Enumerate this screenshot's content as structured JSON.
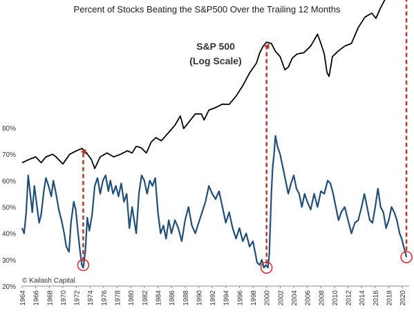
{
  "chart_data": {
    "type": "line",
    "title": "Percent of Stocks Beating the S&P500 Over the Trailing 12 Months",
    "sp500_label_line1": "S&P 500",
    "sp500_label_line2": "(Log Scale)",
    "credit": "© Kailash Capital",
    "xlabel": "",
    "ylabel": "",
    "xlim": [
      1964,
      2021
    ],
    "ylim": [
      0.2,
      0.8
    ],
    "y_ticks": [
      "20%",
      "30%",
      "40%",
      "50%",
      "60%",
      "70%",
      "80%"
    ],
    "x_ticks": [
      "1964",
      "1966",
      "1968",
      "1970",
      "1972",
      "1974",
      "1976",
      "1978",
      "1980",
      "1982",
      "1984",
      "1986",
      "1988",
      "1990",
      "1992",
      "1994",
      "1996",
      "1998",
      "2000",
      "2002",
      "2004",
      "2006",
      "2008",
      "2010",
      "2012",
      "2014",
      "2016",
      "2018",
      "2020"
    ],
    "grid": false,
    "colors": {
      "pct_series": "#1f4e79",
      "sp500_series": "#000000",
      "arrows": "#b03a2e",
      "circles": "#e02020"
    },
    "series": [
      {
        "name": "Percent of stocks beating the S&P500 (trailing 12 months)",
        "axis": "left",
        "points": [
          [
            1964.0,
            0.42
          ],
          [
            1964.3,
            0.4
          ],
          [
            1964.6,
            0.48
          ],
          [
            1964.9,
            0.62
          ],
          [
            1965.2,
            0.55
          ],
          [
            1965.5,
            0.48
          ],
          [
            1965.8,
            0.58
          ],
          [
            1966.2,
            0.5
          ],
          [
            1966.5,
            0.44
          ],
          [
            1966.8,
            0.47
          ],
          [
            1967.2,
            0.56
          ],
          [
            1967.5,
            0.61
          ],
          [
            1967.9,
            0.58
          ],
          [
            1968.3,
            0.54
          ],
          [
            1968.6,
            0.6
          ],
          [
            1969.0,
            0.55
          ],
          [
            1969.4,
            0.49
          ],
          [
            1969.8,
            0.45
          ],
          [
            1970.2,
            0.4
          ],
          [
            1970.5,
            0.35
          ],
          [
            1970.9,
            0.33
          ],
          [
            1971.2,
            0.44
          ],
          [
            1971.6,
            0.52
          ],
          [
            1971.9,
            0.49
          ],
          [
            1972.2,
            0.41
          ],
          [
            1972.5,
            0.34
          ],
          [
            1972.8,
            0.28
          ],
          [
            1973.0,
            0.27
          ],
          [
            1973.3,
            0.33
          ],
          [
            1973.6,
            0.46
          ],
          [
            1973.9,
            0.41
          ],
          [
            1974.3,
            0.47
          ],
          [
            1974.7,
            0.58
          ],
          [
            1975.1,
            0.61
          ],
          [
            1975.5,
            0.55
          ],
          [
            1975.9,
            0.6
          ],
          [
            1976.3,
            0.62
          ],
          [
            1976.7,
            0.56
          ],
          [
            1977.0,
            0.6
          ],
          [
            1977.4,
            0.55
          ],
          [
            1977.8,
            0.58
          ],
          [
            1978.2,
            0.54
          ],
          [
            1978.6,
            0.59
          ],
          [
            1979.0,
            0.52
          ],
          [
            1979.4,
            0.55
          ],
          [
            1979.8,
            0.42
          ],
          [
            1980.2,
            0.5
          ],
          [
            1980.5,
            0.45
          ],
          [
            1980.8,
            0.4
          ],
          [
            1981.2,
            0.55
          ],
          [
            1981.6,
            0.62
          ],
          [
            1982.0,
            0.6
          ],
          [
            1982.4,
            0.55
          ],
          [
            1982.8,
            0.6
          ],
          [
            1983.2,
            0.58
          ],
          [
            1983.6,
            0.61
          ],
          [
            1984.0,
            0.48
          ],
          [
            1984.4,
            0.4
          ],
          [
            1984.8,
            0.43
          ],
          [
            1985.2,
            0.38
          ],
          [
            1985.6,
            0.45
          ],
          [
            1986.0,
            0.4
          ],
          [
            1986.5,
            0.45
          ],
          [
            1987.0,
            0.42
          ],
          [
            1987.5,
            0.37
          ],
          [
            1988.0,
            0.45
          ],
          [
            1988.5,
            0.5
          ],
          [
            1989.0,
            0.43
          ],
          [
            1989.5,
            0.4
          ],
          [
            1990.0,
            0.44
          ],
          [
            1990.5,
            0.48
          ],
          [
            1991.0,
            0.52
          ],
          [
            1991.5,
            0.58
          ],
          [
            1992.0,
            0.55
          ],
          [
            1992.5,
            0.53
          ],
          [
            1993.0,
            0.56
          ],
          [
            1993.5,
            0.5
          ],
          [
            1994.0,
            0.44
          ],
          [
            1994.5,
            0.48
          ],
          [
            1995.0,
            0.42
          ],
          [
            1995.5,
            0.38
          ],
          [
            1996.0,
            0.42
          ],
          [
            1996.5,
            0.37
          ],
          [
            1997.0,
            0.4
          ],
          [
            1997.5,
            0.35
          ],
          [
            1998.0,
            0.37
          ],
          [
            1998.3,
            0.33
          ],
          [
            1998.6,
            0.29
          ],
          [
            1999.0,
            0.28
          ],
          [
            1999.3,
            0.3
          ],
          [
            1999.6,
            0.27
          ],
          [
            1999.9,
            0.28
          ],
          [
            2000.2,
            0.27
          ],
          [
            2000.4,
            0.32
          ],
          [
            2000.7,
            0.55
          ],
          [
            2000.9,
            0.65
          ],
          [
            2001.1,
            0.7
          ],
          [
            2001.3,
            0.77
          ],
          [
            2001.6,
            0.73
          ],
          [
            2002.0,
            0.7
          ],
          [
            2002.4,
            0.65
          ],
          [
            2002.8,
            0.6
          ],
          [
            2003.2,
            0.55
          ],
          [
            2003.6,
            0.59
          ],
          [
            2004.0,
            0.62
          ],
          [
            2004.4,
            0.57
          ],
          [
            2004.8,
            0.55
          ],
          [
            2005.2,
            0.5
          ],
          [
            2005.6,
            0.55
          ],
          [
            2006.0,
            0.52
          ],
          [
            2006.5,
            0.49
          ],
          [
            2007.0,
            0.55
          ],
          [
            2007.5,
            0.5
          ],
          [
            2008.0,
            0.56
          ],
          [
            2008.5,
            0.55
          ],
          [
            2009.0,
            0.6
          ],
          [
            2009.4,
            0.59
          ],
          [
            2009.8,
            0.55
          ],
          [
            2010.2,
            0.5
          ],
          [
            2010.6,
            0.45
          ],
          [
            2011.0,
            0.48
          ],
          [
            2011.5,
            0.5
          ],
          [
            2012.0,
            0.45
          ],
          [
            2012.5,
            0.4
          ],
          [
            2013.0,
            0.44
          ],
          [
            2013.5,
            0.45
          ],
          [
            2014.0,
            0.5
          ],
          [
            2014.4,
            0.55
          ],
          [
            2014.8,
            0.5
          ],
          [
            2015.2,
            0.45
          ],
          [
            2015.6,
            0.44
          ],
          [
            2016.0,
            0.5
          ],
          [
            2016.4,
            0.57
          ],
          [
            2016.8,
            0.5
          ],
          [
            2017.2,
            0.48
          ],
          [
            2017.6,
            0.42
          ],
          [
            2018.0,
            0.45
          ],
          [
            2018.4,
            0.5
          ],
          [
            2018.8,
            0.48
          ],
          [
            2019.2,
            0.45
          ],
          [
            2019.6,
            0.4
          ],
          [
            2019.9,
            0.38
          ],
          [
            2020.2,
            0.35
          ],
          [
            2020.4,
            0.33
          ],
          [
            2020.6,
            0.31
          ]
        ]
      },
      {
        "name": "S&P 500 (log scale)",
        "axis": "overlay-log",
        "points": [
          [
            1964.0,
            0.668
          ],
          [
            1965.0,
            0.68
          ],
          [
            1966.0,
            0.69
          ],
          [
            1966.8,
            0.668
          ],
          [
            1967.5,
            0.69
          ],
          [
            1968.5,
            0.7
          ],
          [
            1969.0,
            0.69
          ],
          [
            1970.0,
            0.663
          ],
          [
            1971.0,
            0.7
          ],
          [
            1972.0,
            0.713
          ],
          [
            1972.8,
            0.722
          ],
          [
            1973.5,
            0.705
          ],
          [
            1974.2,
            0.68
          ],
          [
            1974.7,
            0.646
          ],
          [
            1975.5,
            0.69
          ],
          [
            1976.5,
            0.705
          ],
          [
            1977.5,
            0.69
          ],
          [
            1978.5,
            0.7
          ],
          [
            1979.5,
            0.713
          ],
          [
            1980.2,
            0.705
          ],
          [
            1980.8,
            0.73
          ],
          [
            1981.5,
            0.725
          ],
          [
            1982.3,
            0.705
          ],
          [
            1983.0,
            0.746
          ],
          [
            1983.7,
            0.763
          ],
          [
            1984.5,
            0.751
          ],
          [
            1985.5,
            0.78
          ],
          [
            1986.5,
            0.81
          ],
          [
            1987.3,
            0.845
          ],
          [
            1987.8,
            0.797
          ],
          [
            1988.5,
            0.82
          ],
          [
            1989.5,
            0.853
          ],
          [
            1990.4,
            0.853
          ],
          [
            1990.8,
            0.83
          ],
          [
            1991.5,
            0.867
          ],
          [
            1992.5,
            0.877
          ],
          [
            1993.5,
            0.89
          ],
          [
            1994.5,
            0.889
          ],
          [
            1995.5,
            0.92
          ],
          [
            1996.5,
            0.96
          ],
          [
            1997.5,
            1.008
          ],
          [
            1998.5,
            1.045
          ],
          [
            1999.0,
            1.085
          ],
          [
            1999.5,
            1.11
          ],
          [
            2000.0,
            1.125
          ],
          [
            2000.7,
            1.12
          ],
          [
            2001.3,
            1.09
          ],
          [
            2002.0,
            1.07
          ],
          [
            2002.7,
            1.02
          ],
          [
            2003.2,
            1.03
          ],
          [
            2003.8,
            1.065
          ],
          [
            2004.5,
            1.08
          ],
          [
            2005.5,
            1.085
          ],
          [
            2006.5,
            1.11
          ],
          [
            2007.5,
            1.155
          ],
          [
            2008.0,
            1.12
          ],
          [
            2008.5,
            1.08
          ],
          [
            2008.9,
            1.01
          ],
          [
            2009.2,
            0.995
          ],
          [
            2009.7,
            1.07
          ],
          [
            2010.5,
            1.09
          ],
          [
            2011.5,
            1.11
          ],
          [
            2012.5,
            1.12
          ],
          [
            2013.5,
            1.18
          ],
          [
            2014.5,
            1.22
          ],
          [
            2015.5,
            1.235
          ],
          [
            2016.1,
            1.215
          ],
          [
            2016.8,
            1.255
          ],
          [
            2017.5,
            1.29
          ],
          [
            2018.0,
            1.32
          ],
          [
            2018.8,
            1.3
          ],
          [
            2019.5,
            1.34
          ],
          [
            2020.0,
            1.355
          ],
          [
            2020.2,
            1.29
          ],
          [
            2020.5,
            1.345
          ],
          [
            2020.9,
            1.38
          ]
        ]
      }
    ],
    "annotations": [
      {
        "type": "circle",
        "x": 1973.0,
        "y": 0.28
      },
      {
        "type": "circle",
        "x": 2000.0,
        "y": 0.27
      },
      {
        "type": "circle",
        "x": 2020.6,
        "y": 0.31
      },
      {
        "type": "arrow",
        "x": 1973.0,
        "from_y": 0.295,
        "to_y": 0.725
      },
      {
        "type": "arrow",
        "x": 2000.0,
        "from_y": 0.285,
        "to_y": 1.125
      },
      {
        "type": "arrow",
        "x": 2020.6,
        "from_y": 0.335,
        "to_y": 1.385
      }
    ]
  }
}
